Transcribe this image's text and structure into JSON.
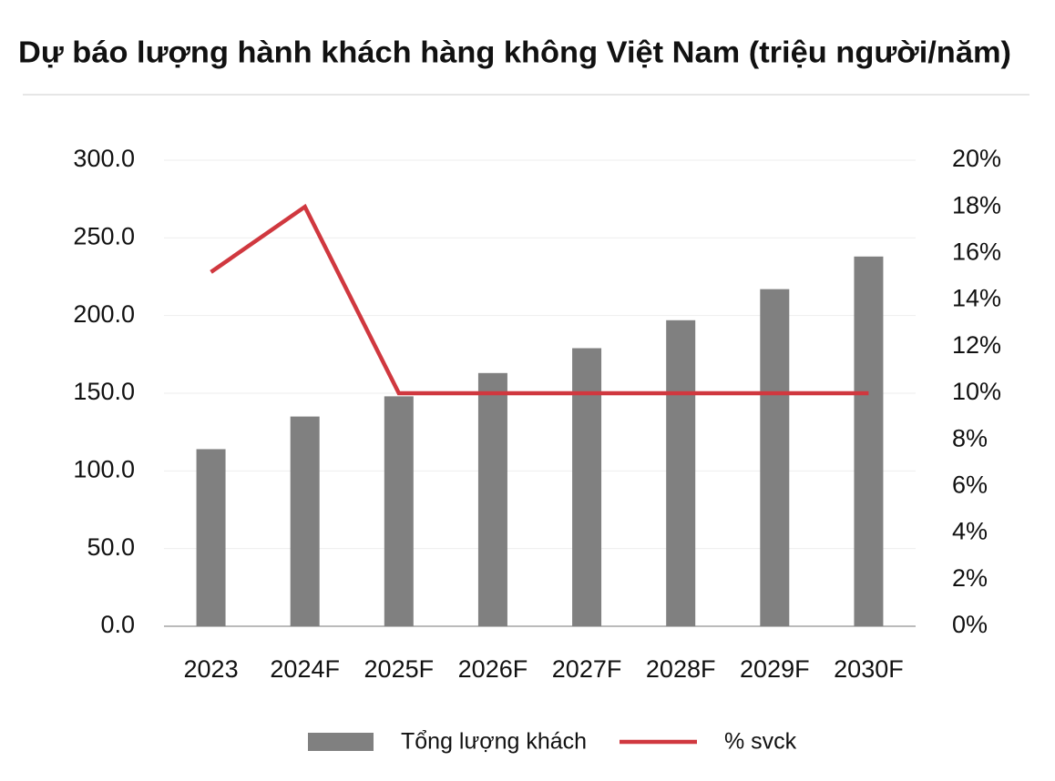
{
  "chart_data": {
    "type": "bar_line",
    "title": "Dự báo lượng hành khách hàng không Việt Nam (triệu người/năm)",
    "categories": [
      "2023",
      "2024F",
      "2025F",
      "2026F",
      "2027F",
      "2028F",
      "2029F",
      "2030F"
    ],
    "series": [
      {
        "name": "Tổng lượng khách",
        "type": "bar",
        "color": "#808080",
        "values": [
          114,
          135,
          148,
          163,
          179,
          197,
          217,
          238
        ]
      },
      {
        "name": "% svck",
        "type": "line",
        "axis": "y2",
        "color": "#d0383f",
        "values": [
          15.2,
          18,
          10,
          10,
          10,
          10,
          10,
          10
        ]
      }
    ],
    "ylim": [
      0,
      300
    ],
    "yticks": [
      {
        "value": 0,
        "label": "0.0"
      },
      {
        "value": 50,
        "label": "50.0"
      },
      {
        "value": 100,
        "label": "100.0"
      },
      {
        "value": 150,
        "label": "150.0"
      },
      {
        "value": 200,
        "label": "200.0"
      },
      {
        "value": 250,
        "label": "250.0"
      },
      {
        "value": 300,
        "label": "300.0"
      }
    ],
    "y2lim": [
      0,
      20
    ],
    "y2ticks": [
      {
        "value": 0,
        "label": "0%"
      },
      {
        "value": 2,
        "label": "2%"
      },
      {
        "value": 4,
        "label": "4%"
      },
      {
        "value": 6,
        "label": "6%"
      },
      {
        "value": 8,
        "label": "8%"
      },
      {
        "value": 10,
        "label": "10%"
      },
      {
        "value": 12,
        "label": "12%"
      },
      {
        "value": 14,
        "label": "14%"
      },
      {
        "value": 16,
        "label": "16%"
      },
      {
        "value": 18,
        "label": "18%"
      },
      {
        "value": 20,
        "label": "20%"
      }
    ],
    "grid": true,
    "legend": "bottom"
  }
}
